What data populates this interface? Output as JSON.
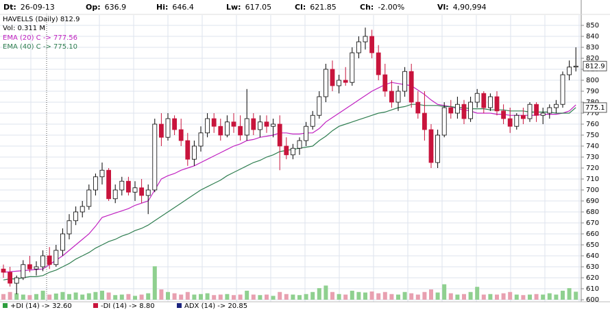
{
  "header": {
    "fields": [
      {
        "label": "Dt:",
        "value": "26-09-13"
      },
      {
        "label": "Op:",
        "value": "636.9"
      },
      {
        "label": "Hi:",
        "value": "646.4"
      },
      {
        "label": "Lw:",
        "value": "617.05"
      },
      {
        "label": "Cl:",
        "value": "621.85"
      },
      {
        "label": "Ch:",
        "value": "-2.00%"
      },
      {
        "label": "Vl:",
        "value": "4,90,994"
      }
    ]
  },
  "chart_data": {
    "type": "candlestick",
    "title": "HAVELLS (Daily) 812.9",
    "volume_label": "Vol: 0.311 M",
    "up_color": "#ffffff",
    "down_color": "#c8143c",
    "volume_up_color": "#8fd08f",
    "volume_down_color": "#e8a0b0",
    "ylim": [
      600,
      850
    ],
    "yticks": [
      600,
      610,
      620,
      630,
      640,
      650,
      660,
      670,
      680,
      690,
      700,
      710,
      720,
      730,
      740,
      750,
      760,
      770,
      780,
      790,
      800,
      810,
      820,
      830,
      840,
      850
    ],
    "vlim": [
      0,
      1.6
    ],
    "grid": true,
    "price_markers": [
      812.9,
      775.1
    ],
    "ohlc": [
      [
        628,
        632,
        620,
        625
      ],
      [
        625,
        630,
        612,
        615
      ],
      [
        615,
        622,
        605,
        620
      ],
      [
        620,
        636,
        618,
        632
      ],
      [
        632,
        640,
        625,
        628
      ],
      [
        628,
        635,
        622,
        630
      ],
      [
        630,
        645,
        626,
        640
      ],
      [
        640,
        648,
        628,
        632
      ],
      [
        632,
        650,
        630,
        645
      ],
      [
        645,
        665,
        640,
        660
      ],
      [
        660,
        678,
        655,
        672
      ],
      [
        672,
        685,
        668,
        680
      ],
      [
        680,
        690,
        675,
        685
      ],
      [
        685,
        705,
        682,
        700
      ],
      [
        700,
        715,
        695,
        712
      ],
      [
        712,
        725,
        705,
        718
      ],
      [
        718,
        720,
        690,
        692
      ],
      [
        692,
        705,
        688,
        700
      ],
      [
        700,
        712,
        695,
        708
      ],
      [
        708,
        712,
        695,
        698
      ],
      [
        698,
        708,
        690,
        702
      ],
      [
        702,
        710,
        688,
        695
      ],
      [
        695,
        705,
        678,
        700
      ],
      [
        700,
        765,
        698,
        760
      ],
      [
        760,
        770,
        740,
        748
      ],
      [
        748,
        770,
        745,
        765
      ],
      [
        765,
        768,
        750,
        755
      ],
      [
        755,
        765,
        740,
        745
      ],
      [
        745,
        752,
        722,
        728
      ],
      [
        728,
        745,
        722,
        740
      ],
      [
        740,
        758,
        735,
        752
      ],
      [
        752,
        770,
        748,
        765
      ],
      [
        765,
        770,
        752,
        758
      ],
      [
        758,
        765,
        745,
        750
      ],
      [
        750,
        768,
        748,
        762
      ],
      [
        762,
        770,
        752,
        758
      ],
      [
        758,
        768,
        745,
        750
      ],
      [
        750,
        792,
        745,
        765
      ],
      [
        765,
        770,
        750,
        755
      ],
      [
        755,
        768,
        748,
        762
      ],
      [
        762,
        768,
        752,
        758
      ],
      [
        758,
        765,
        748,
        760
      ],
      [
        760,
        768,
        718,
        740
      ],
      [
        740,
        748,
        728,
        732
      ],
      [
        732,
        742,
        728,
        738
      ],
      [
        738,
        748,
        732,
        745
      ],
      [
        745,
        762,
        740,
        758
      ],
      [
        758,
        772,
        755,
        768
      ],
      [
        768,
        790,
        765,
        785
      ],
      [
        785,
        815,
        780,
        810
      ],
      [
        810,
        818,
        790,
        795
      ],
      [
        795,
        805,
        788,
        800
      ],
      [
        800,
        812,
        795,
        798
      ],
      [
        798,
        830,
        795,
        825
      ],
      [
        825,
        840,
        820,
        835
      ],
      [
        835,
        848,
        828,
        840
      ],
      [
        840,
        846,
        820,
        825
      ],
      [
        825,
        832,
        800,
        805
      ],
      [
        805,
        815,
        785,
        790
      ],
      [
        790,
        800,
        775,
        780
      ],
      [
        780,
        795,
        772,
        790
      ],
      [
        790,
        812,
        785,
        808
      ],
      [
        808,
        815,
        775,
        780
      ],
      [
        780,
        790,
        765,
        770
      ],
      [
        770,
        790,
        745,
        755
      ],
      [
        755,
        760,
        720,
        725
      ],
      [
        725,
        755,
        720,
        750
      ],
      [
        750,
        780,
        748,
        775
      ],
      [
        775,
        782,
        765,
        770
      ],
      [
        770,
        785,
        765,
        778
      ],
      [
        778,
        782,
        760,
        765
      ],
      [
        765,
        785,
        762,
        780
      ],
      [
        780,
        792,
        775,
        788
      ],
      [
        788,
        790,
        770,
        775
      ],
      [
        775,
        788,
        772,
        785
      ],
      [
        785,
        790,
        768,
        772
      ],
      [
        772,
        778,
        760,
        765
      ],
      [
        765,
        775,
        752,
        758
      ],
      [
        758,
        770,
        755,
        768
      ],
      [
        768,
        775,
        760,
        765
      ],
      [
        765,
        780,
        762,
        778
      ],
      [
        778,
        780,
        762,
        768
      ],
      [
        768,
        775,
        760,
        770
      ],
      [
        770,
        778,
        765,
        775
      ],
      [
        775,
        782,
        770,
        778
      ],
      [
        778,
        808,
        775,
        805
      ],
      [
        805,
        818,
        800,
        812
      ],
      [
        812,
        830,
        808,
        812.9
      ]
    ],
    "volume": [
      0.22,
      0.3,
      0.25,
      0.2,
      0.18,
      0.22,
      0.35,
      0.2,
      0.24,
      0.3,
      0.22,
      0.28,
      0.2,
      0.25,
      0.3,
      0.35,
      0.28,
      0.18,
      0.2,
      0.22,
      0.15,
      0.2,
      0.25,
      1.3,
      0.4,
      0.3,
      0.25,
      0.2,
      0.3,
      0.2,
      0.22,
      0.25,
      0.18,
      0.2,
      0.22,
      0.18,
      0.2,
      0.35,
      0.2,
      0.18,
      0.2,
      0.15,
      0.3,
      0.22,
      0.2,
      0.18,
      0.22,
      0.3,
      0.45,
      0.55,
      0.3,
      0.22,
      0.2,
      0.35,
      0.3,
      0.28,
      0.32,
      0.25,
      0.3,
      0.22,
      0.2,
      0.3,
      0.25,
      0.2,
      0.3,
      0.4,
      0.28,
      0.6,
      0.25,
      0.2,
      0.22,
      0.3,
      0.5,
      0.2,
      0.22,
      0.2,
      0.25,
      0.3,
      0.2,
      0.18,
      0.2,
      0.22,
      0.2,
      0.25,
      0.2,
      0.35,
      0.45,
      0.311
    ],
    "series": [
      {
        "name": "EMA (20) C -> 777.56",
        "color": "#c020c0",
        "values": [
          625,
          625.5,
          626,
          626.5,
          627,
          627.5,
          628,
          632,
          636,
          640,
          645,
          650,
          655,
          660,
          667,
          675,
          677,
          679,
          681,
          683,
          686,
          688,
          690,
          700,
          710,
          713,
          715,
          718,
          720,
          722,
          725,
          728,
          731,
          734,
          737,
          740,
          742,
          745,
          746,
          748,
          749,
          750,
          752,
          752,
          751,
          751,
          752,
          752,
          756,
          762,
          766,
          770,
          774,
          778,
          782,
          786,
          790,
          793,
          796,
          798,
          797,
          796,
          795,
          791,
          787,
          782,
          778,
          777,
          776,
          774,
          773,
          772,
          770,
          770,
          770,
          769,
          769,
          768,
          768,
          768,
          768,
          768,
          769,
          769,
          769,
          770,
          772,
          777.56
        ]
      },
      {
        "name": "EMA (40) C -> 775.10",
        "color": "#2e7d4f",
        "values": [
          618,
          619,
          619,
          620,
          621,
          621,
          622,
          625,
          627,
          630,
          633,
          637,
          640,
          643,
          647,
          650,
          653,
          655,
          658,
          660,
          663,
          665,
          668,
          672,
          676,
          680,
          684,
          688,
          692,
          696,
          700,
          703,
          706,
          709,
          713,
          716,
          719,
          722,
          725,
          727,
          730,
          732,
          735,
          736,
          737,
          738,
          739,
          740,
          745,
          749,
          754,
          758,
          760,
          762,
          764,
          766,
          768,
          770,
          771,
          773,
          775,
          776,
          778,
          778,
          777,
          777,
          777,
          776,
          776,
          775,
          775,
          774,
          774,
          774,
          773,
          773,
          773,
          772,
          772,
          772,
          771,
          771,
          771,
          771,
          770,
          770,
          770,
          775.1
        ]
      }
    ],
    "indicators": [
      {
        "name": "+DI (14) -> 32.60",
        "color": "#2e9e3e"
      },
      {
        "name": "-DI (14) -> 8.80",
        "color": "#c8143c"
      },
      {
        "name": "ADX (14) -> 20.85",
        "color": "#1a237e"
      }
    ]
  }
}
